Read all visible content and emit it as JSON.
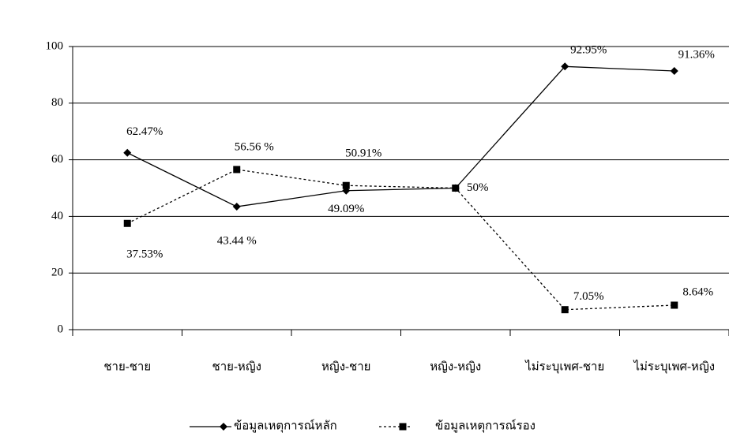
{
  "chart_data": {
    "type": "line",
    "categories": [
      "ชาย-ชาย",
      "ชาย-หญิง",
      "หญิง-ชาย",
      "หญิง-หญิง",
      "ไม่ระบุเพศ-ชาย",
      "ไม่ระบุเพศ-หญิง"
    ],
    "series": [
      {
        "name": "ข้อมูลเหตุการณ์หลัก",
        "color": "#000000",
        "marker": "diamond",
        "dashed": false,
        "values": [
          62.47,
          43.44,
          49.09,
          50,
          92.95,
          91.36
        ],
        "value_labels": [
          "62.47%",
          "43.44 %",
          "49.09%",
          "50%",
          "92.95%",
          "91.36%"
        ]
      },
      {
        "name": "ข้อมูลเหตุการณ์รอง",
        "color": "#000000",
        "marker": "square",
        "dashed": true,
        "values": [
          37.53,
          56.56,
          50.91,
          50,
          7.05,
          8.64
        ],
        "value_labels": [
          "37.53%",
          "56.56 %",
          "50.91%",
          null,
          "7.05%",
          "8.64%"
        ]
      }
    ],
    "ylim": [
      0,
      100
    ],
    "yticks": [
      0,
      20,
      40,
      60,
      80,
      100
    ],
    "grid": true,
    "legend": "bottom"
  }
}
